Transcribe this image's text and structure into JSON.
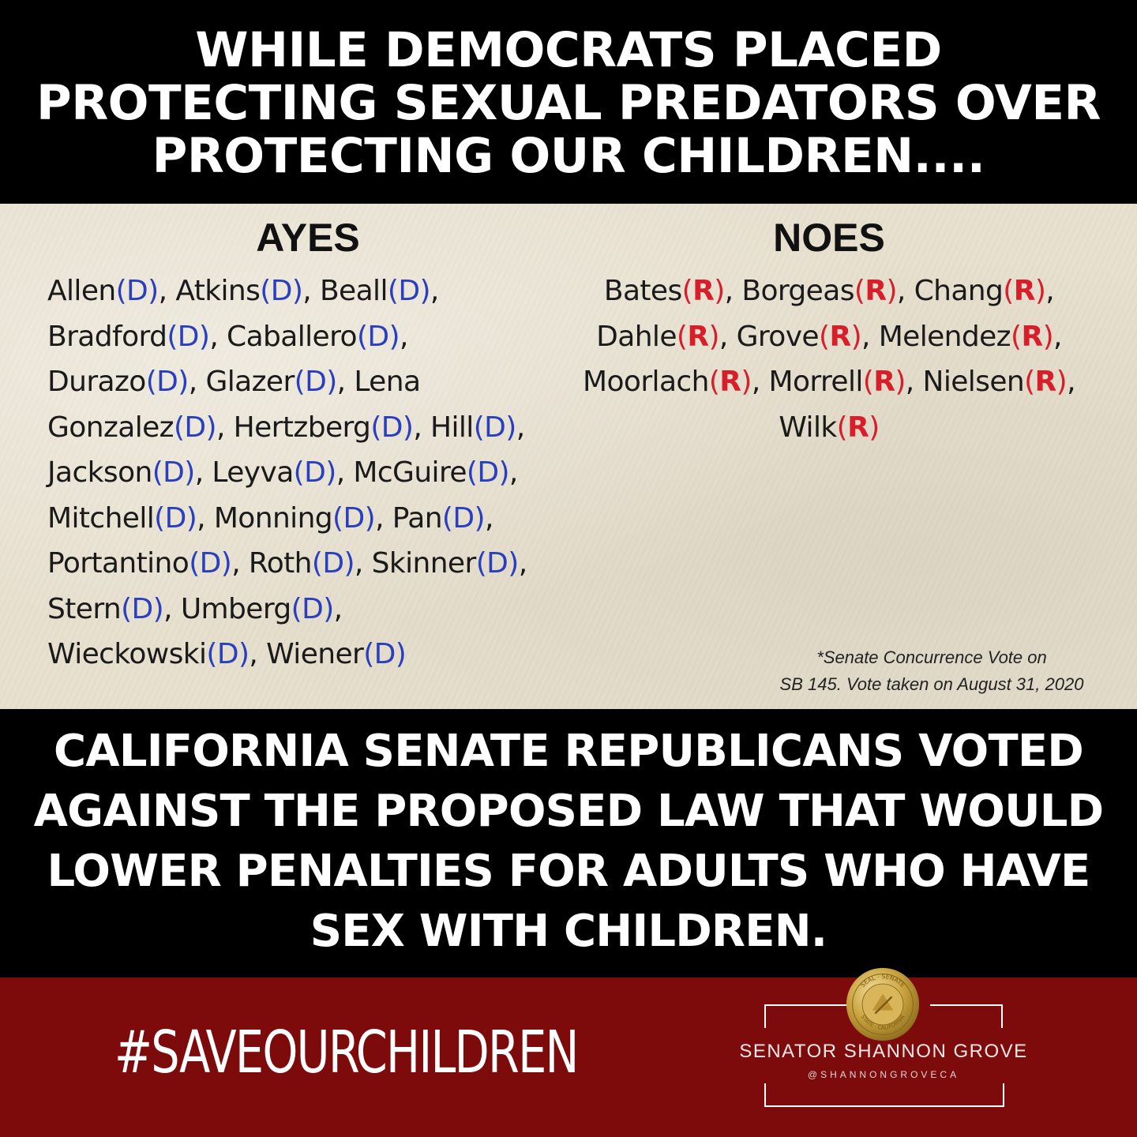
{
  "headline_top": [
    "WHILE DEMOCRATS PLACED",
    "PROTECTING SEXUAL PREDATORS OVER",
    "PROTECTING OUR CHILDREN...."
  ],
  "ayes": {
    "heading": "AYES",
    "lines": [
      [
        {
          "n": "Allen",
          "p": "(D)",
          "s": ", "
        },
        {
          "n": "Atkins",
          "p": "(D)",
          "s": ", "
        },
        {
          "n": "Beall",
          "p": "(D)",
          "s": ","
        }
      ],
      [
        {
          "n": "Bradford",
          "p": "(D)",
          "s": ", "
        },
        {
          "n": "Caballero",
          "p": "(D)",
          "s": ","
        }
      ],
      [
        {
          "n": "Durazo",
          "p": "(D)",
          "s": ", "
        },
        {
          "n": "Glazer",
          "p": "(D)",
          "s": ", Lena"
        }
      ],
      [
        {
          "n": "Gonzalez",
          "p": "(D)",
          "s": ", "
        },
        {
          "n": "Hertzberg",
          "p": "(D)",
          "s": ", "
        },
        {
          "n": "Hill",
          "p": "(D)",
          "s": ","
        }
      ],
      [
        {
          "n": "Jackson",
          "p": "(D)",
          "s": ", "
        },
        {
          "n": "Leyva",
          "p": "(D)",
          "s": ", "
        },
        {
          "n": "McGuire",
          "p": "(D)",
          "s": ","
        }
      ],
      [
        {
          "n": "Mitchell",
          "p": "(D)",
          "s": ", "
        },
        {
          "n": "Monning",
          "p": "(D)",
          "s": ", "
        },
        {
          "n": "Pan",
          "p": "(D)",
          "s": ","
        }
      ],
      [
        {
          "n": "Portantino",
          "p": "(D)",
          "s": ", "
        },
        {
          "n": "Roth",
          "p": "(D)",
          "s": ", "
        },
        {
          "n": "Skinner",
          "p": "(D)",
          "s": ","
        }
      ],
      [
        {
          "n": "Stern",
          "p": "(D)",
          "s": ", "
        },
        {
          "n": "Umberg",
          "p": "(D)",
          "s": ","
        }
      ],
      [
        {
          "n": "Wieckowski",
          "p": "(D)",
          "s": ", "
        },
        {
          "n": "Wiener",
          "p": "(D)",
          "s": ""
        }
      ]
    ]
  },
  "noes": {
    "heading": "NOES",
    "lines": [
      [
        {
          "n": "Bates",
          "p": "(",
          "l": "R",
          "c": ")",
          "s": ", "
        },
        {
          "n": "Borgeas",
          "p": "(",
          "l": "R",
          "c": ")",
          "s": ", "
        },
        {
          "n": "Chang",
          "p": "(",
          "l": "R",
          "c": ")",
          "s": ","
        }
      ],
      [
        {
          "n": "Dahle",
          "p": "(",
          "l": "R",
          "c": ")",
          "s": ", "
        },
        {
          "n": "Grove",
          "p": "(",
          "l": "R",
          "c": ")",
          "s": ", "
        },
        {
          "n": "Melendez",
          "p": "(",
          "l": "R",
          "c": ")",
          "s": ","
        }
      ],
      [
        {
          "n": "Moorlach",
          "p": "(",
          "l": "R",
          "c": ")",
          "s": ", "
        },
        {
          "n": "Morrell",
          "p": "(",
          "l": "R",
          "c": ")",
          "s": ", "
        },
        {
          "n": "Nielsen",
          "p": "(",
          "l": "R",
          "c": ")",
          "s": ","
        }
      ],
      [
        {
          "n": "Wilk",
          "p": "(",
          "l": "R",
          "c": ")",
          "s": ""
        }
      ]
    ]
  },
  "footnote": {
    "line1": "*Senate Concurrence Vote on",
    "line2": "SB 145. Vote taken on August 31, 2020"
  },
  "headline_bottom": [
    "CALIFORNIA SENATE REPUBLICANS VOTED",
    "AGAINST THE PROPOSED LAW THAT WOULD",
    "LOWER PENALTIES FOR ADULTS WHO HAVE",
    "SEX WITH CHILDREN."
  ],
  "hashtag": "#SAVEOURCHILDREN",
  "brand": {
    "name": "SENATOR SHANNON GROVE",
    "handle": "@SHANNONGROVECA",
    "seal_text_top": "SEAL · SENATE",
    "seal_text_bottom": "STATE · CALIFORNIA"
  },
  "colors": {
    "democrat": "#2a3fbf",
    "republican": "#d81e2a",
    "band_red": "#7d0b0b",
    "paper": "#e7e0cf"
  }
}
